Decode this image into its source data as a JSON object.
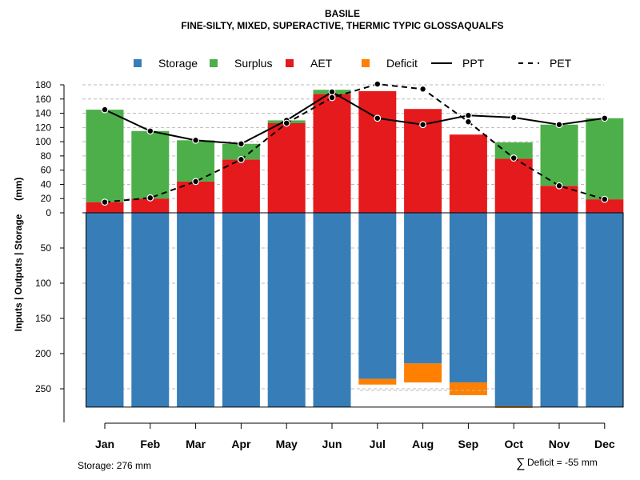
{
  "chart_data": {
    "type": "bar",
    "title": "BASILE",
    "subtitle": "FINE-SILTY, MIXED, SUPERACTIVE, THERMIC TYPIC GLOSSAQUALFS",
    "ylabel": "Inputs | Outputs | Storage     (mm)",
    "categories": [
      "Jan",
      "Feb",
      "Mar",
      "Apr",
      "May",
      "Jun",
      "Jul",
      "Aug",
      "Sep",
      "Oct",
      "Nov",
      "Dec"
    ],
    "upper_yticks": [
      0,
      20,
      40,
      60,
      80,
      100,
      120,
      140,
      160,
      180
    ],
    "lower_yticks": [
      50,
      100,
      150,
      200,
      250
    ],
    "upper_ylim": [
      0,
      180
    ],
    "lower_ylim": [
      0,
      276
    ],
    "storage_capacity": 276,
    "series": [
      {
        "name": "Storage",
        "color": "#377EB8",
        "values": [
          276,
          276,
          276,
          276,
          276,
          276,
          236,
          214,
          241,
          276,
          276,
          276
        ]
      },
      {
        "name": "Deficit",
        "color": "#FF7F00",
        "values": [
          0,
          0,
          0,
          0,
          0,
          0,
          -8,
          -27,
          -18,
          -2,
          0,
          0
        ]
      },
      {
        "name": "AET",
        "color": "#E41A1C",
        "values": [
          15,
          20,
          44,
          75,
          126,
          167,
          171,
          146,
          110,
          76,
          38,
          19
        ]
      },
      {
        "name": "Surplus",
        "color": "#4DAF4A",
        "values": [
          130,
          95,
          58,
          22,
          4,
          6,
          0,
          0,
          0,
          23,
          86,
          114
        ]
      },
      {
        "name": "PPT",
        "color": "#000000",
        "style": "solid",
        "values": [
          145,
          115,
          102,
          97,
          130,
          170,
          133,
          124,
          137,
          134,
          124,
          133
        ]
      },
      {
        "name": "PET",
        "color": "#000000",
        "style": "dashed",
        "values": [
          15,
          21,
          44,
          75,
          126,
          162,
          181,
          174,
          128,
          77,
          38,
          19
        ]
      }
    ],
    "legend": [
      {
        "label": "Storage",
        "kind": "square",
        "color": "#377EB8"
      },
      {
        "label": "Surplus",
        "kind": "square",
        "color": "#4DAF4A"
      },
      {
        "label": "AET",
        "kind": "square",
        "color": "#E41A1C"
      },
      {
        "label": "Deficit",
        "kind": "square",
        "color": "#FF7F00"
      },
      {
        "label": "PPT",
        "kind": "solid-line",
        "color": "#000000"
      },
      {
        "label": "PET",
        "kind": "dashed-line",
        "color": "#000000"
      }
    ],
    "legend_position": "top"
  },
  "footer": {
    "storage_text": "Storage: 276 mm",
    "deficit_symbol": "∑",
    "deficit_text": "Deficit = -55 mm"
  }
}
